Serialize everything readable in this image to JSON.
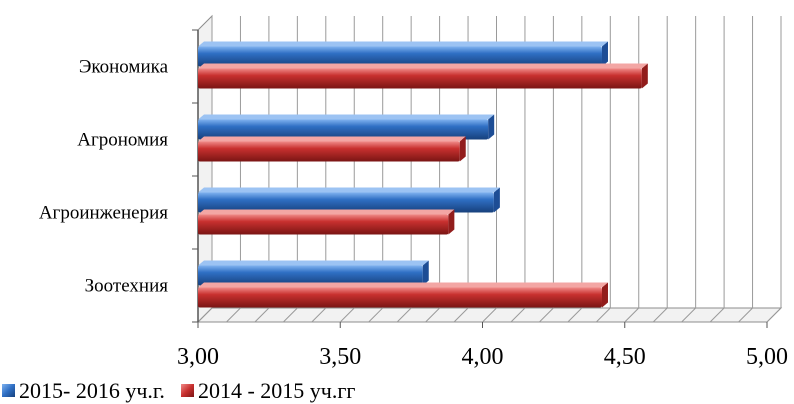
{
  "chart_data": {
    "type": "bar",
    "orientation": "horizontal",
    "categories": [
      "Экономика",
      "Агрономия",
      "Агроинженерия",
      "Зоотехния"
    ],
    "series": [
      {
        "name": "2015- 2016 уч.г.",
        "color": "#2f6fc4",
        "values": [
          4.42,
          4.02,
          4.04,
          3.79
        ]
      },
      {
        "name": "2014 - 2015 уч.гг",
        "color": "#c8302f",
        "values": [
          4.56,
          3.92,
          3.88,
          4.42
        ]
      }
    ],
    "xlim": [
      3.0,
      5.0
    ],
    "x_ticks": [
      "3,00",
      "3,50",
      "4,00",
      "4,50",
      "5,00"
    ],
    "grid": true,
    "legend_position": "bottom-left",
    "style": "3d"
  }
}
